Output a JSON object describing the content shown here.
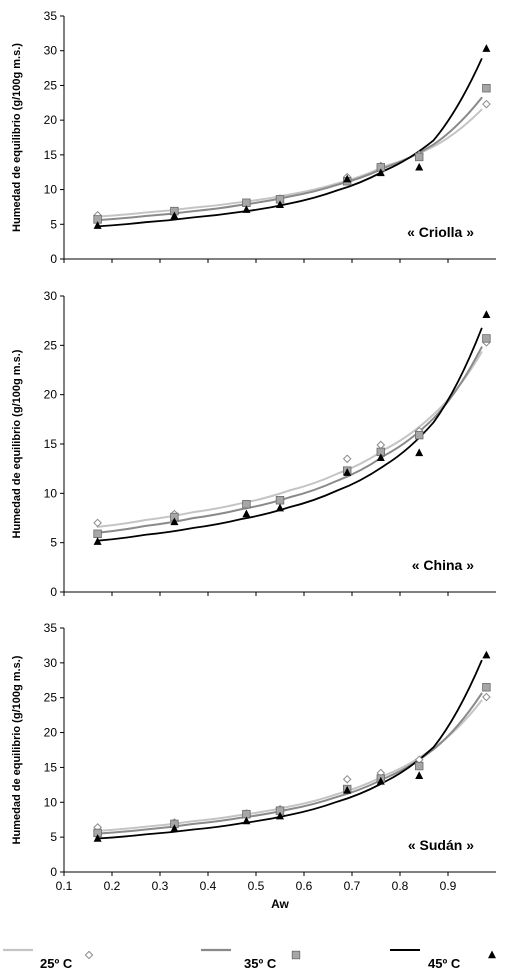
{
  "colors": {
    "s25": "#c4c4c4",
    "s35": "#8a8a8a",
    "s45": "#000000",
    "square_fill": "#a6a6a6",
    "square_stroke": "#6a6a6a",
    "diamond_fill": "#ffffff",
    "diamond_stroke": "#8a8a8a",
    "axis": "#000000"
  },
  "legend": [
    {
      "series": "s25",
      "label": "25º C",
      "marker": "diamond"
    },
    {
      "series": "s35",
      "label": "35º C",
      "marker": "square"
    },
    {
      "series": "s45",
      "label": "45º C",
      "marker": "triangle"
    }
  ],
  "chart_data": [
    {
      "type": "scatter",
      "panel_label": "« Criolla »",
      "ylabel": "Humedad de equilibrio (g/100g m.s.)",
      "xlabel": "",
      "xlim": [
        0.1,
        1.0
      ],
      "ylim": [
        0,
        35
      ],
      "yticks": [
        0,
        5,
        10,
        15,
        20,
        25,
        30,
        35
      ],
      "x_axis_labels_shown": false,
      "series": [
        {
          "name": "25º C",
          "key": "s25",
          "marker": "diamond",
          "x": [
            0.17,
            0.33,
            0.48,
            0.55,
            0.69,
            0.76,
            0.84,
            0.98
          ],
          "y": [
            6.3,
            6.8,
            8.0,
            8.7,
            11.8,
            13.4,
            15.0,
            22.3
          ],
          "curve": [
            6.1,
            6.7,
            7.4,
            8.2,
            9.3,
            10.9,
            13.4,
            16.2,
            21.5
          ]
        },
        {
          "name": "35º C",
          "key": "s35",
          "marker": "square",
          "x": [
            0.17,
            0.33,
            0.48,
            0.55,
            0.69,
            0.76,
            0.84,
            0.98
          ],
          "y": [
            5.7,
            6.9,
            8.1,
            8.6,
            11.2,
            13.2,
            14.7,
            24.6
          ],
          "curve": [
            5.6,
            6.2,
            6.9,
            7.8,
            9.0,
            10.7,
            13.2,
            16.5,
            23.2
          ]
        },
        {
          "name": "45º C",
          "key": "s45",
          "marker": "triangle",
          "x": [
            0.17,
            0.33,
            0.48,
            0.55,
            0.69,
            0.76,
            0.84,
            0.98
          ],
          "y": [
            4.8,
            6.2,
            7.1,
            7.8,
            11.5,
            12.4,
            13.2,
            30.3
          ],
          "curve": [
            4.7,
            5.3,
            6.0,
            6.8,
            8.0,
            9.9,
            12.8,
            17.1,
            28.8
          ]
        }
      ]
    },
    {
      "type": "scatter",
      "panel_label": "« China »",
      "ylabel": "Humedad de equilibrio (g/100g m.s.)",
      "xlabel": "",
      "xlim": [
        0.1,
        1.0
      ],
      "ylim": [
        0,
        30
      ],
      "yticks": [
        0,
        5,
        10,
        15,
        20,
        25,
        30
      ],
      "x_axis_labels_shown": false,
      "series": [
        {
          "name": "25º C",
          "key": "s25",
          "marker": "diamond",
          "x": [
            0.17,
            0.33,
            0.48,
            0.55,
            0.69,
            0.76,
            0.84,
            0.98
          ],
          "y": [
            7.0,
            7.9,
            8.9,
            9.3,
            13.5,
            14.9,
            16.3,
            25.3
          ],
          "curve": [
            6.6,
            7.3,
            8.1,
            9.0,
            10.3,
            12.0,
            14.5,
            18.0,
            24.3
          ]
        },
        {
          "name": "35º C",
          "key": "s35",
          "marker": "square",
          "x": [
            0.17,
            0.33,
            0.48,
            0.55,
            0.69,
            0.76,
            0.84,
            0.98
          ],
          "y": [
            5.9,
            7.6,
            8.9,
            9.3,
            12.3,
            14.2,
            15.9,
            25.7
          ],
          "curve": [
            6.0,
            6.7,
            7.5,
            8.4,
            9.6,
            11.3,
            13.9,
            17.6,
            24.8
          ]
        },
        {
          "name": "45º C",
          "key": "s45",
          "marker": "triangle",
          "x": [
            0.17,
            0.33,
            0.48,
            0.55,
            0.69,
            0.76,
            0.84,
            0.98
          ],
          "y": [
            5.1,
            7.1,
            7.9,
            8.5,
            12.1,
            13.6,
            14.1,
            28.1
          ],
          "curve": [
            5.2,
            5.8,
            6.5,
            7.4,
            8.6,
            10.3,
            12.9,
            17.2,
            26.7
          ]
        }
      ]
    },
    {
      "type": "scatter",
      "panel_label": "« Sudán »",
      "ylabel": "Humedad de equilibrio (g/100g m.s.)",
      "xlabel": "Aw",
      "xlim": [
        0.1,
        1.0
      ],
      "ylim": [
        0,
        35
      ],
      "yticks": [
        0,
        5,
        10,
        15,
        20,
        25,
        30,
        35
      ],
      "xticks": [
        0.1,
        0.2,
        0.3,
        0.4,
        0.5,
        0.6,
        0.7,
        0.8,
        0.9
      ],
      "x_axis_labels_shown": true,
      "series": [
        {
          "name": "25º C",
          "key": "s25",
          "marker": "diamond",
          "x": [
            0.17,
            0.33,
            0.48,
            0.55,
            0.69,
            0.76,
            0.84,
            0.98
          ],
          "y": [
            6.4,
            7.1,
            8.4,
            9.0,
            13.3,
            14.2,
            16.1,
            25.1
          ],
          "curve": [
            5.9,
            6.5,
            7.3,
            8.2,
            9.4,
            11.2,
            13.9,
            17.8,
            24.6
          ]
        },
        {
          "name": "35º C",
          "key": "s35",
          "marker": "square",
          "x": [
            0.17,
            0.33,
            0.48,
            0.55,
            0.69,
            0.76,
            0.84,
            0.98
          ],
          "y": [
            5.6,
            6.9,
            8.3,
            8.8,
            11.9,
            13.4,
            15.2,
            26.5
          ],
          "curve": [
            5.5,
            6.1,
            6.9,
            7.8,
            9.0,
            10.8,
            13.5,
            17.6,
            25.6
          ]
        },
        {
          "name": "45º C",
          "key": "s45",
          "marker": "triangle",
          "x": [
            0.17,
            0.33,
            0.48,
            0.55,
            0.69,
            0.76,
            0.84,
            0.98
          ],
          "y": [
            4.8,
            6.2,
            7.3,
            8.0,
            11.7,
            13.0,
            13.8,
            31.1
          ],
          "curve": [
            4.8,
            5.4,
            6.1,
            7.0,
            8.2,
            10.1,
            13.0,
            17.9,
            30.3
          ]
        }
      ]
    }
  ]
}
